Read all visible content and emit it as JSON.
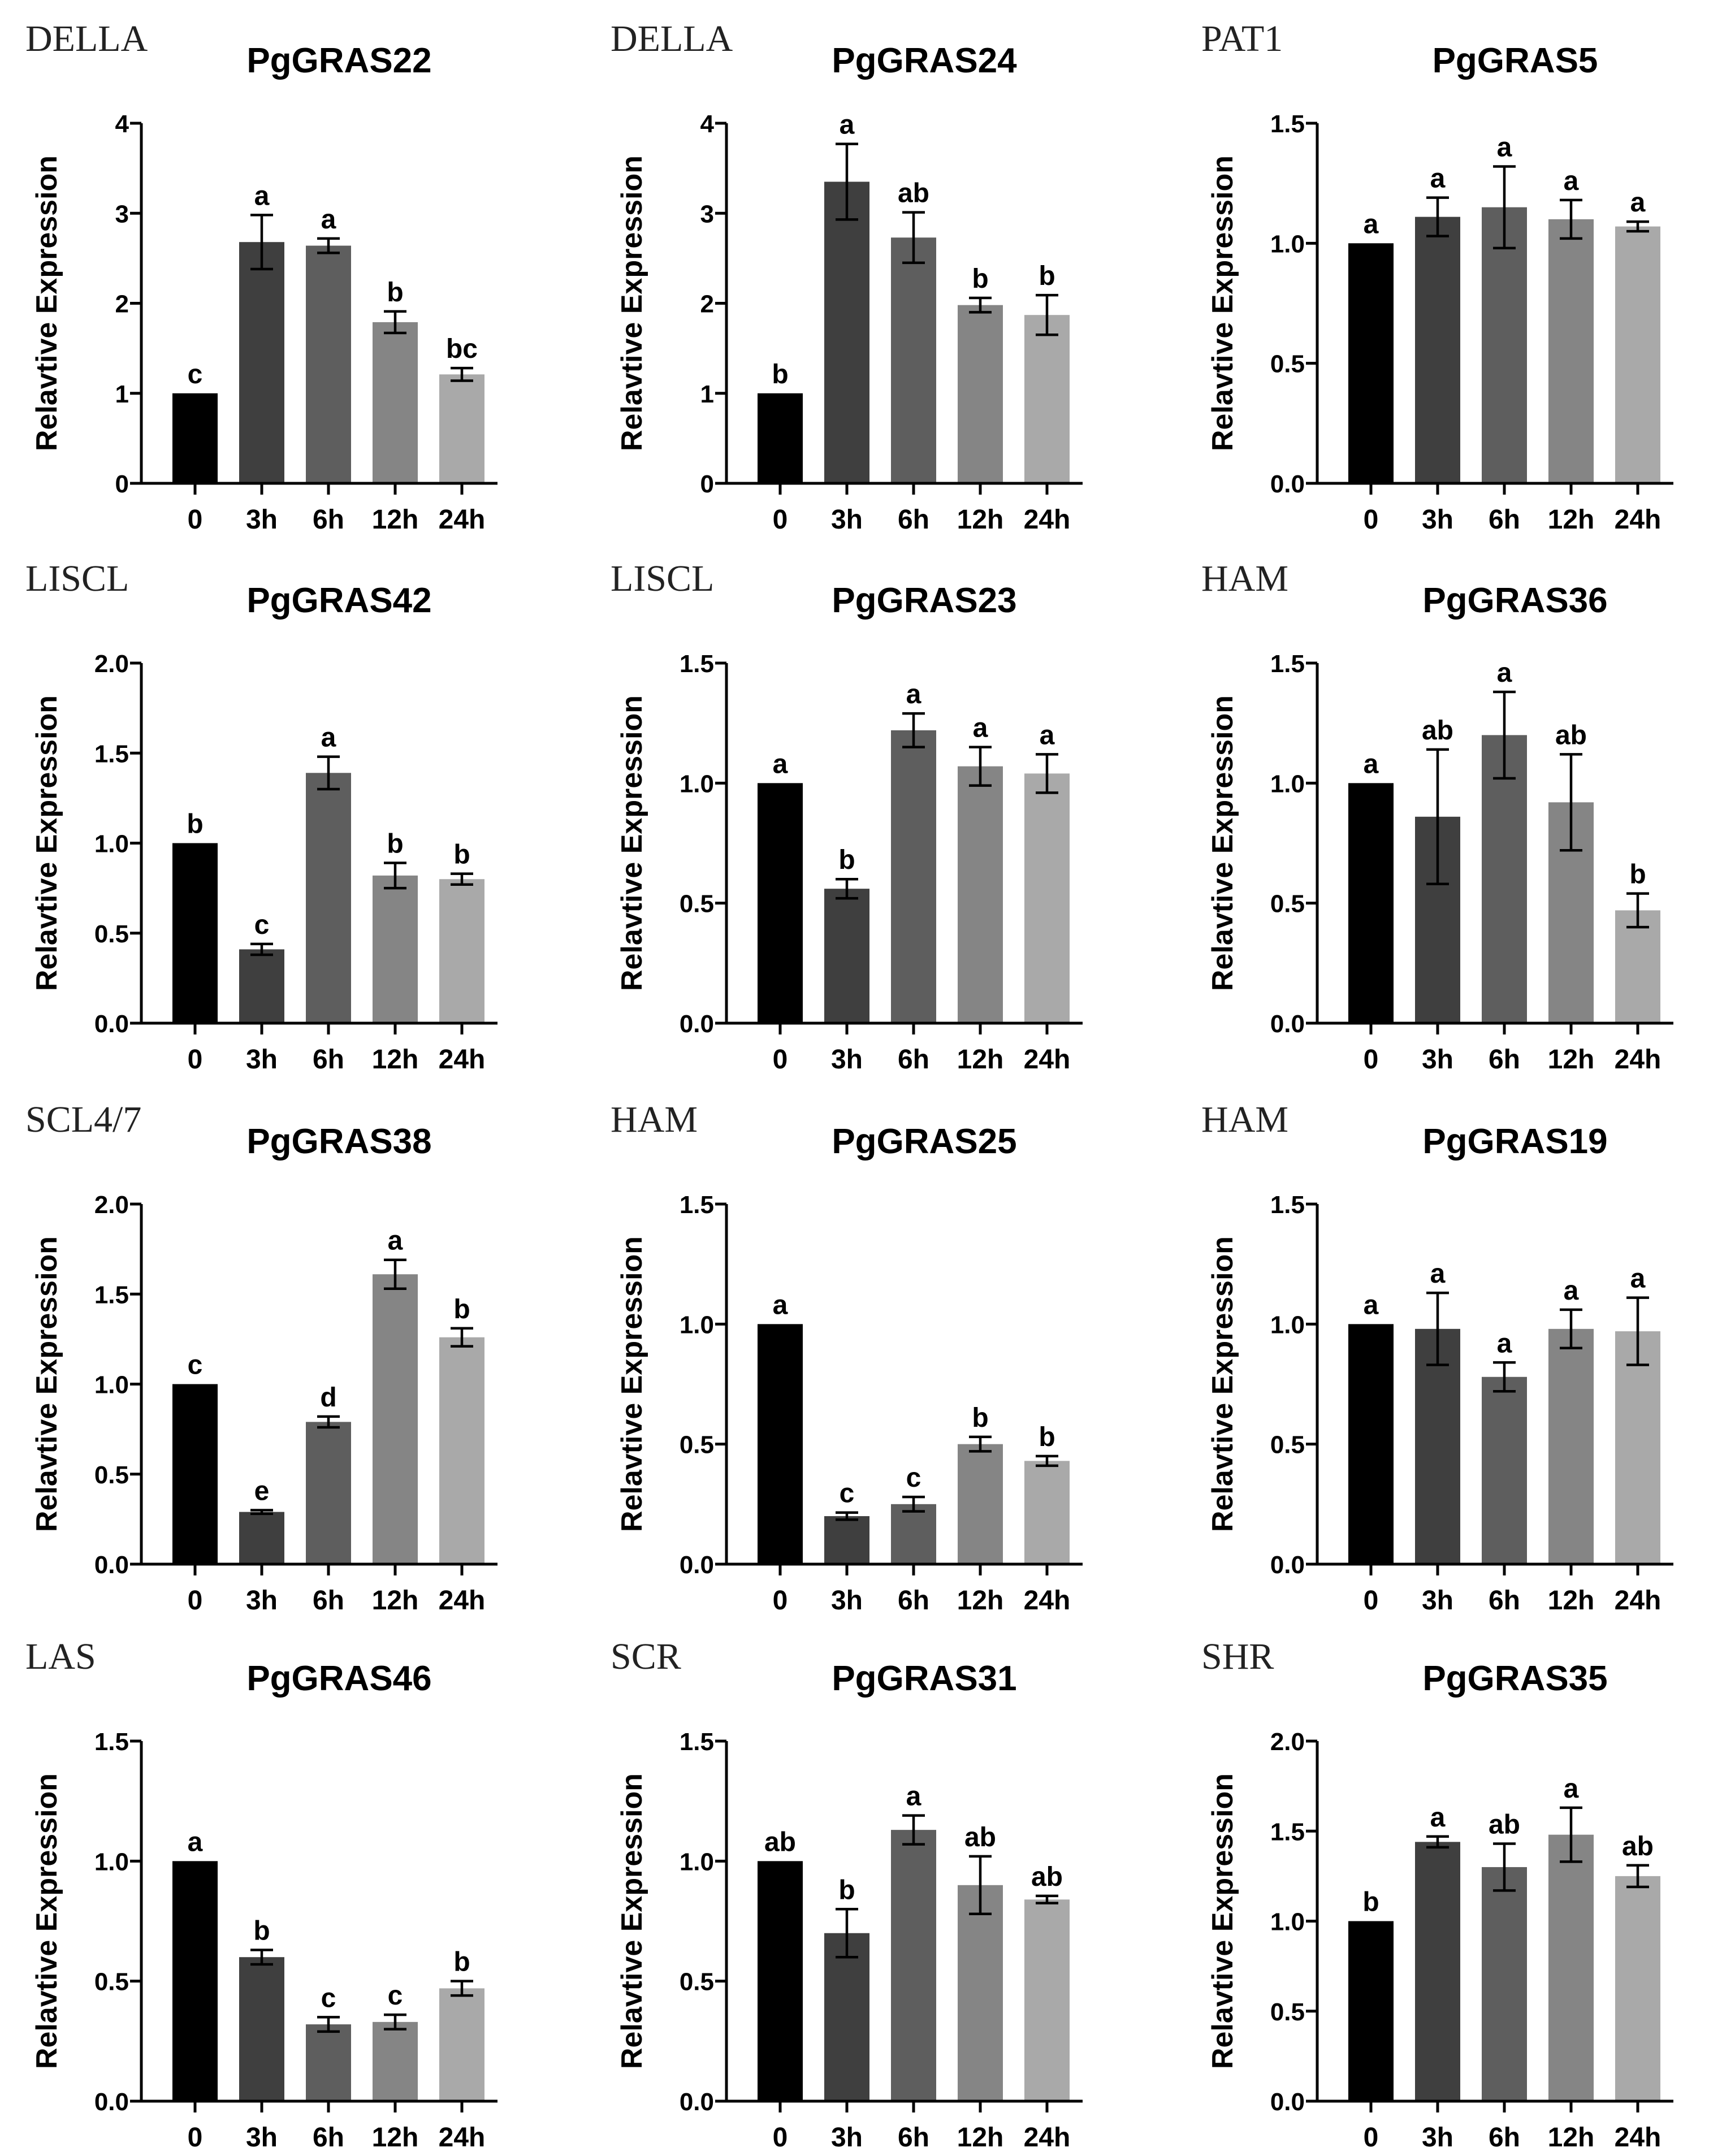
{
  "figure": {
    "categories": [
      "0",
      "3h",
      "6h",
      "12h",
      "24h"
    ],
    "ylabel": "Relavtive Expression",
    "bar_colors": [
      "#000000",
      "#3f3f3f",
      "#5e5e5e",
      "#858585",
      "#a9a9a9"
    ]
  },
  "chart_data": [
    {
      "type": "bar",
      "family": "DELLA",
      "title": "PgGRAS22",
      "ylabel": "Relavtive Expression",
      "categories": [
        "0",
        "3h",
        "6h",
        "12h",
        "24h"
      ],
      "values": [
        1.0,
        2.68,
        2.64,
        1.79,
        1.21
      ],
      "errors": [
        0,
        0.3,
        0.08,
        0.12,
        0.07
      ],
      "letters": [
        "c",
        "a",
        "a",
        "b",
        "bc"
      ],
      "ylim": [
        0,
        4
      ],
      "yticks": [
        "0",
        "1",
        "2",
        "3",
        "4"
      ]
    },
    {
      "type": "bar",
      "family": "DELLA",
      "title": "PgGRAS24",
      "ylabel": "Relavtive Expression",
      "categories": [
        "0",
        "3h",
        "6h",
        "12h",
        "24h"
      ],
      "values": [
        1.0,
        3.35,
        2.73,
        1.98,
        1.87
      ],
      "errors": [
        0,
        0.42,
        0.28,
        0.08,
        0.22
      ],
      "letters": [
        "b",
        "a",
        "ab",
        "b",
        "b"
      ],
      "ylim": [
        0,
        4
      ],
      "yticks": [
        "0",
        "1",
        "2",
        "3",
        "4"
      ]
    },
    {
      "type": "bar",
      "family": "PAT1",
      "title": "PgGRAS5",
      "ylabel": "Relavtive Expression",
      "categories": [
        "0",
        "3h",
        "6h",
        "12h",
        "24h"
      ],
      "values": [
        1.0,
        1.11,
        1.15,
        1.1,
        1.07
      ],
      "errors": [
        0,
        0.08,
        0.17,
        0.08,
        0.02
      ],
      "letters": [
        "a",
        "a",
        "a",
        "a",
        "a"
      ],
      "ylim": [
        0,
        1.5
      ],
      "yticks": [
        "0.0",
        "0.5",
        "1.0",
        "1.5"
      ]
    },
    {
      "type": "bar",
      "family": "LISCL",
      "title": "PgGRAS42",
      "ylabel": "Relavtive Expression",
      "categories": [
        "0",
        "3h",
        "6h",
        "12h",
        "24h"
      ],
      "values": [
        1.0,
        0.41,
        1.39,
        0.82,
        0.8
      ],
      "errors": [
        0,
        0.03,
        0.09,
        0.07,
        0.03
      ],
      "letters": [
        "b",
        "c",
        "a",
        "b",
        "b"
      ],
      "ylim": [
        0,
        2
      ],
      "yticks": [
        "0.0",
        "0.5",
        "1.0",
        "1.5",
        "2.0"
      ]
    },
    {
      "type": "bar",
      "family": "LISCL",
      "title": "PgGRAS23",
      "ylabel": "Relavtive Expression",
      "categories": [
        "0",
        "3h",
        "6h",
        "12h",
        "24h"
      ],
      "values": [
        1.0,
        0.56,
        1.22,
        1.07,
        1.04
      ],
      "errors": [
        0,
        0.04,
        0.07,
        0.08,
        0.08
      ],
      "letters": [
        "a",
        "b",
        "a",
        "a",
        "a"
      ],
      "ylim": [
        0,
        1.5
      ],
      "yticks": [
        "0.0",
        "0.5",
        "1.0",
        "1.5"
      ]
    },
    {
      "type": "bar",
      "family": "HAM",
      "title": "PgGRAS36",
      "ylabel": "Relavtive Expression",
      "categories": [
        "0",
        "3h",
        "6h",
        "12h",
        "24h"
      ],
      "values": [
        1.0,
        0.86,
        1.2,
        0.92,
        0.47
      ],
      "errors": [
        0,
        0.28,
        0.18,
        0.2,
        0.07
      ],
      "letters": [
        "a",
        "ab",
        "a",
        "ab",
        "b"
      ],
      "ylim": [
        0,
        1.5
      ],
      "yticks": [
        "0.0",
        "0.5",
        "1.0",
        "1.5"
      ]
    },
    {
      "type": "bar",
      "family": "SCL4/7",
      "title": "PgGRAS38",
      "ylabel": "Relavtive Expression",
      "categories": [
        "0",
        "3h",
        "6h",
        "12h",
        "24h"
      ],
      "values": [
        1.0,
        0.29,
        0.79,
        1.61,
        1.26
      ],
      "errors": [
        0,
        0.01,
        0.03,
        0.08,
        0.05
      ],
      "letters": [
        "c",
        "e",
        "d",
        "a",
        "b"
      ],
      "ylim": [
        0,
        2
      ],
      "yticks": [
        "0.0",
        "0.5",
        "1.0",
        "1.5",
        "2.0"
      ]
    },
    {
      "type": "bar",
      "family": "HAM",
      "title": "PgGRAS25",
      "ylabel": "Relavtive Expression",
      "categories": [
        "0",
        "3h",
        "6h",
        "12h",
        "24h"
      ],
      "values": [
        1.0,
        0.2,
        0.25,
        0.5,
        0.43
      ],
      "errors": [
        0,
        0.015,
        0.03,
        0.03,
        0.02
      ],
      "letters": [
        "a",
        "c",
        "c",
        "b",
        "b"
      ],
      "ylim": [
        0,
        1.5
      ],
      "yticks": [
        "0.0",
        "0.5",
        "1.0",
        "1.5"
      ]
    },
    {
      "type": "bar",
      "family": "HAM",
      "title": "PgGRAS19",
      "ylabel": "Relavtive Expression",
      "categories": [
        "0",
        "3h",
        "6h",
        "12h",
        "24h"
      ],
      "values": [
        1.0,
        0.98,
        0.78,
        0.98,
        0.97
      ],
      "errors": [
        0,
        0.15,
        0.06,
        0.08,
        0.14
      ],
      "letters": [
        "a",
        "a",
        "a",
        "a",
        "a"
      ],
      "ylim": [
        0,
        1.5
      ],
      "yticks": [
        "0.0",
        "0.5",
        "1.0",
        "1.5"
      ]
    },
    {
      "type": "bar",
      "family": "LAS",
      "title": "PgGRAS46",
      "ylabel": "Relavtive Expression",
      "categories": [
        "0",
        "3h",
        "6h",
        "12h",
        "24h"
      ],
      "values": [
        1.0,
        0.6,
        0.32,
        0.33,
        0.47
      ],
      "errors": [
        0,
        0.03,
        0.03,
        0.03,
        0.03
      ],
      "letters": [
        "a",
        "b",
        "c",
        "c",
        "b"
      ],
      "ylim": [
        0,
        1.5
      ],
      "yticks": [
        "0.0",
        "0.5",
        "1.0",
        "1.5"
      ]
    },
    {
      "type": "bar",
      "family": "SCR",
      "title": "PgGRAS31",
      "ylabel": "Relavtive Expression",
      "categories": [
        "0",
        "3h",
        "6h",
        "12h",
        "24h"
      ],
      "values": [
        1.0,
        0.7,
        1.13,
        0.9,
        0.84
      ],
      "errors": [
        0,
        0.1,
        0.06,
        0.12,
        0.015
      ],
      "letters": [
        "ab",
        "b",
        "a",
        "ab",
        "ab"
      ],
      "ylim": [
        0,
        1.5
      ],
      "yticks": [
        "0.0",
        "0.5",
        "1.0",
        "1.5"
      ]
    },
    {
      "type": "bar",
      "family": "SHR",
      "title": "PgGRAS35",
      "ylabel": "Relavtive Expression",
      "categories": [
        "0",
        "3h",
        "6h",
        "12h",
        "24h"
      ],
      "values": [
        1.0,
        1.44,
        1.3,
        1.48,
        1.25
      ],
      "errors": [
        0,
        0.03,
        0.13,
        0.15,
        0.06
      ],
      "letters": [
        "b",
        "a",
        "ab",
        "a",
        "ab"
      ],
      "ylim": [
        0,
        2
      ],
      "yticks": [
        "0.0",
        "0.5",
        "1.0",
        "1.5",
        "2.0"
      ]
    }
  ]
}
